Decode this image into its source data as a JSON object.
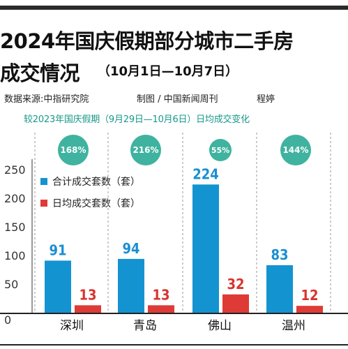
{
  "header": {
    "title_line1": "2024年国庆假期部分城市二手房",
    "title_line2": "成交情况",
    "date_range": "（10月1日—10月7日）",
    "source": "数据来源:中指研究院",
    "maker": "制图 / 中国新闻周刊",
    "author": "程婷",
    "subtitle": "较2023年国庆假期（9月29日—10月6日）日均成交变化"
  },
  "colors": {
    "total_bar": "#1493d1",
    "daily_bar": "#de3b36",
    "total_label": "#1a8fd0",
    "daily_label": "#d9342f",
    "circle": "#3fb39f",
    "subtitle": "#17998a"
  },
  "chart_data": {
    "type": "bar",
    "categories": [
      "深圳",
      "青岛",
      "佛山",
      "温州"
    ],
    "series": [
      {
        "name": "合计成交套数（套）",
        "values": [
          91,
          94,
          224,
          83
        ]
      },
      {
        "name": "日均成交套数（套）",
        "values": [
          13,
          13,
          32,
          12
        ]
      }
    ],
    "change_vs_2023": [
      "168%",
      "216%",
      "55%",
      "144%"
    ],
    "yticks": [
      "0",
      "50",
      "100",
      "150",
      "200",
      "250"
    ],
    "ylim": [
      0,
      250
    ],
    "grid": false,
    "legend_position": "top-left"
  }
}
